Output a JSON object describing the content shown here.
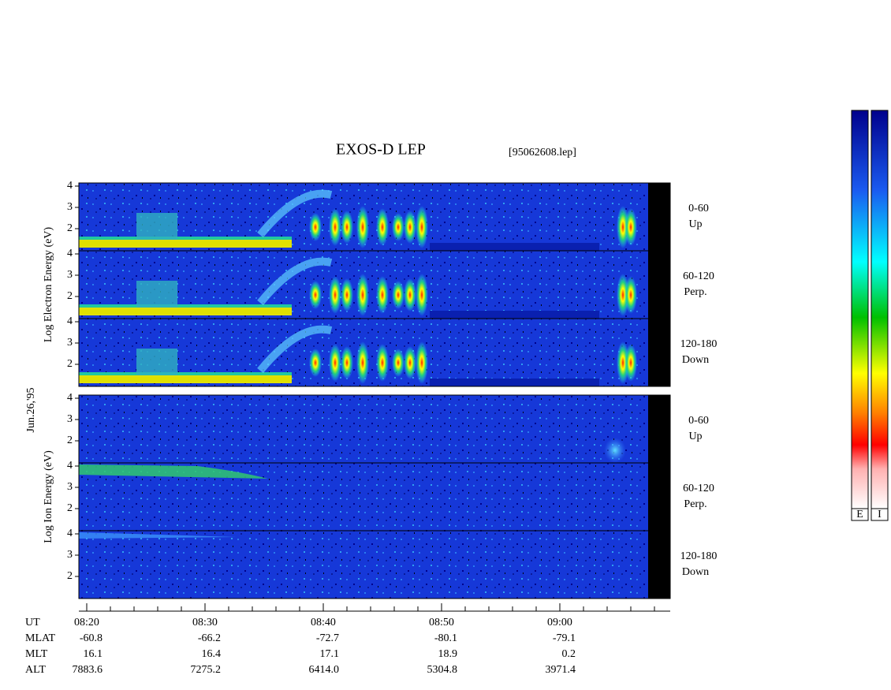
{
  "header": {
    "title": "EXOS-D LEP",
    "file": "[95062608.lep]"
  },
  "date_label": "Jun.26,'95",
  "groups": [
    {
      "label": "Log Electron Energy (eV)",
      "panels": [
        {
          "channel": "0-60",
          "direction": "Up",
          "yticks": [
            4,
            3,
            2
          ]
        },
        {
          "channel": "60-120",
          "direction": "Perp.",
          "yticks": [
            4,
            3,
            2
          ]
        },
        {
          "channel": "120-180",
          "direction": "Down",
          "yticks": [
            4,
            3,
            2
          ]
        }
      ]
    },
    {
      "label": "Log Ion Energy (eV)",
      "panels": [
        {
          "channel": "0-60",
          "direction": "Up",
          "yticks": [
            4,
            3,
            2
          ]
        },
        {
          "channel": "60-120",
          "direction": "Perp.",
          "yticks": [
            4,
            3,
            2
          ]
        },
        {
          "channel": "120-180",
          "direction": "Down",
          "yticks": [
            4,
            3,
            2
          ]
        }
      ]
    }
  ],
  "time_axis": {
    "rows": [
      {
        "label": "UT",
        "values": [
          "08:20",
          "08:30",
          "08:40",
          "08:50",
          "09:00"
        ]
      },
      {
        "label": "MLAT",
        "values": [
          "-60.8",
          "-66.2",
          "-72.7",
          "-80.1",
          "-79.1"
        ]
      },
      {
        "label": "MLT",
        "values": [
          "16.1",
          "16.4",
          "17.1",
          "18.9",
          "0.2"
        ]
      },
      {
        "label": "ALT",
        "values": [
          "7883.6",
          "7275.2",
          "6414.0",
          "5304.8",
          "3971.4"
        ]
      }
    ]
  },
  "color_bars": [
    "E",
    "I"
  ]
}
